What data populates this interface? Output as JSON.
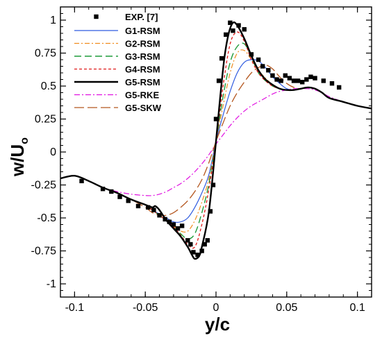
{
  "chart_data": {
    "type": "line",
    "xlabel": "y/c",
    "ylabel_main": "w/U",
    "ylabel_sub": "o",
    "xlim": [
      -0.11,
      0.11
    ],
    "ylim": [
      -1.1,
      1.1
    ],
    "xticks": [
      -0.1,
      -0.05,
      0,
      0.05,
      0.1
    ],
    "xtick_labels": [
      "-0.1",
      "-0.05",
      "0",
      "0.05",
      "0.1"
    ],
    "yticks": [
      -1,
      -0.75,
      -0.5,
      -0.25,
      0,
      0.25,
      0.5,
      0.75,
      1
    ],
    "ytick_labels": [
      "-1",
      "-0.75",
      "-0.5",
      "-0.25",
      "0",
      "0.25",
      "0.5",
      "0.75",
      "1"
    ],
    "grid": false,
    "legend_position": "top-left",
    "experiment": {
      "name": "EXP. [7]",
      "color": "#000000",
      "x": [
        -0.095,
        -0.08,
        -0.074,
        -0.068,
        -0.062,
        -0.055,
        -0.048,
        -0.044,
        -0.04,
        -0.036,
        -0.033,
        -0.03,
        -0.027,
        -0.024,
        -0.02,
        -0.018,
        -0.016,
        -0.013,
        -0.01,
        -0.008,
        -0.006,
        -0.004,
        -0.002,
        0,
        0.002,
        0.004,
        0.007,
        0.01,
        0.012,
        0.016,
        0.02,
        0.025,
        0.03,
        0.033,
        0.037,
        0.04,
        0.043,
        0.046,
        0.049,
        0.052,
        0.055,
        0.058,
        0.061,
        0.064,
        0.067,
        0.07,
        0.076,
        0.082,
        0.087
      ],
      "y": [
        -0.22,
        -0.28,
        -0.3,
        -0.34,
        -0.37,
        -0.41,
        -0.42,
        -0.44,
        -0.48,
        -0.51,
        -0.53,
        -0.55,
        -0.58,
        -0.56,
        -0.67,
        -0.7,
        -0.76,
        -0.78,
        -0.75,
        -0.7,
        -0.67,
        -0.45,
        -0.25,
        0.25,
        0.54,
        0.71,
        0.89,
        0.98,
        0.92,
        0.96,
        0.93,
        0.74,
        0.7,
        0.65,
        0.62,
        0.58,
        0.55,
        0.54,
        0.58,
        0.56,
        0.54,
        0.54,
        0.53,
        0.55,
        0.57,
        0.56,
        0.54,
        0.52,
        0.49
      ]
    },
    "series": [
      {
        "name": "G1-RSM",
        "color": "#2f5be0",
        "width": 1.2,
        "dash": "",
        "x": [
          -0.11,
          -0.1,
          -0.09,
          -0.08,
          -0.07,
          -0.06,
          -0.05,
          -0.045,
          -0.04,
          -0.035,
          -0.03,
          -0.025,
          -0.02,
          -0.015,
          -0.01,
          -0.005,
          0,
          0.005,
          0.01,
          0.015,
          0.02,
          0.025,
          0.03,
          0.035,
          0.04,
          0.045,
          0.05,
          0.055,
          0.06,
          0.065,
          0.07,
          0.075,
          0.08,
          0.09,
          0.1,
          0.11
        ],
        "y": [
          -0.2,
          -0.18,
          -0.22,
          -0.27,
          -0.31,
          -0.36,
          -0.4,
          -0.44,
          -0.47,
          -0.5,
          -0.53,
          -0.53,
          -0.5,
          -0.42,
          -0.31,
          -0.17,
          0.08,
          0.28,
          0.46,
          0.6,
          0.68,
          0.7,
          0.69,
          0.64,
          0.57,
          0.52,
          0.48,
          0.47,
          0.48,
          0.49,
          0.48,
          0.45,
          0.41,
          0.38,
          0.35,
          0.33
        ]
      },
      {
        "name": "G2-RSM",
        "color": "#f08c1e",
        "width": 1.2,
        "dash": "7,3,2,3",
        "x": [
          -0.11,
          -0.1,
          -0.09,
          -0.08,
          -0.07,
          -0.06,
          -0.05,
          -0.045,
          -0.04,
          -0.035,
          -0.03,
          -0.025,
          -0.02,
          -0.015,
          -0.01,
          -0.005,
          0,
          0.005,
          0.01,
          0.015,
          0.02,
          0.025,
          0.03,
          0.035,
          0.04,
          0.045,
          0.05,
          0.055,
          0.06,
          0.065,
          0.07,
          0.075,
          0.08,
          0.09,
          0.1,
          0.11
        ],
        "y": [
          -0.2,
          -0.18,
          -0.22,
          -0.27,
          -0.31,
          -0.36,
          -0.4,
          -0.44,
          -0.48,
          -0.52,
          -0.56,
          -0.6,
          -0.6,
          -0.52,
          -0.38,
          -0.2,
          0.08,
          0.35,
          0.6,
          0.75,
          0.77,
          0.7,
          0.62,
          0.56,
          0.51,
          0.48,
          0.47,
          0.47,
          0.48,
          0.49,
          0.48,
          0.45,
          0.41,
          0.38,
          0.35,
          0.33
        ]
      },
      {
        "name": "G3-RSM",
        "color": "#1f9c3a",
        "width": 1.4,
        "dash": "10,5",
        "x": [
          -0.11,
          -0.1,
          -0.09,
          -0.08,
          -0.07,
          -0.06,
          -0.05,
          -0.045,
          -0.04,
          -0.035,
          -0.03,
          -0.025,
          -0.02,
          -0.015,
          -0.01,
          -0.005,
          0,
          0.005,
          0.01,
          0.015,
          0.02,
          0.025,
          0.03,
          0.035,
          0.04,
          0.045,
          0.05,
          0.055,
          0.06,
          0.065,
          0.07,
          0.075,
          0.08,
          0.09,
          0.1,
          0.11
        ],
        "y": [
          -0.2,
          -0.18,
          -0.22,
          -0.27,
          -0.31,
          -0.36,
          -0.4,
          -0.44,
          -0.48,
          -0.52,
          -0.57,
          -0.62,
          -0.66,
          -0.62,
          -0.46,
          -0.24,
          0.08,
          0.42,
          0.68,
          0.8,
          0.82,
          0.72,
          0.6,
          0.54,
          0.5,
          0.48,
          0.47,
          0.47,
          0.48,
          0.49,
          0.48,
          0.45,
          0.41,
          0.38,
          0.35,
          0.33
        ]
      },
      {
        "name": "G4-RSM",
        "color": "#e01818",
        "width": 1.3,
        "dash": "4,3",
        "x": [
          -0.11,
          -0.1,
          -0.09,
          -0.08,
          -0.07,
          -0.06,
          -0.05,
          -0.045,
          -0.04,
          -0.035,
          -0.03,
          -0.025,
          -0.02,
          -0.015,
          -0.01,
          -0.005,
          0,
          0.005,
          0.01,
          0.015,
          0.02,
          0.025,
          0.03,
          0.035,
          0.04,
          0.045,
          0.05,
          0.055,
          0.06,
          0.065,
          0.07,
          0.075,
          0.08,
          0.09,
          0.1,
          0.11
        ],
        "y": [
          -0.2,
          -0.18,
          -0.22,
          -0.27,
          -0.31,
          -0.36,
          -0.4,
          -0.44,
          -0.48,
          -0.52,
          -0.57,
          -0.63,
          -0.7,
          -0.72,
          -0.55,
          -0.28,
          0.08,
          0.5,
          0.82,
          0.91,
          0.84,
          0.7,
          0.6,
          0.54,
          0.5,
          0.48,
          0.47,
          0.47,
          0.48,
          0.49,
          0.48,
          0.45,
          0.41,
          0.38,
          0.35,
          0.33
        ]
      },
      {
        "name": "G5-RSM",
        "color": "#000000",
        "width": 2.4,
        "dash": "",
        "x": [
          -0.11,
          -0.1,
          -0.09,
          -0.08,
          -0.07,
          -0.06,
          -0.05,
          -0.045,
          -0.043,
          -0.04,
          -0.035,
          -0.03,
          -0.025,
          -0.02,
          -0.017,
          -0.015,
          -0.012,
          -0.01,
          -0.005,
          0,
          0.003,
          0.006,
          0.009,
          0.012,
          0.015,
          0.02,
          0.025,
          0.03,
          0.035,
          0.04,
          0.045,
          0.05,
          0.055,
          0.06,
          0.065,
          0.07,
          0.075,
          0.08,
          0.09,
          0.1,
          0.11
        ],
        "y": [
          -0.2,
          -0.18,
          -0.22,
          -0.27,
          -0.31,
          -0.36,
          -0.4,
          -0.42,
          -0.41,
          -0.44,
          -0.52,
          -0.58,
          -0.64,
          -0.72,
          -0.78,
          -0.81,
          -0.79,
          -0.72,
          -0.45,
          0.08,
          0.42,
          0.72,
          0.9,
          0.98,
          0.96,
          0.86,
          0.73,
          0.62,
          0.55,
          0.51,
          0.48,
          0.47,
          0.47,
          0.48,
          0.49,
          0.48,
          0.45,
          0.41,
          0.38,
          0.35,
          0.33
        ]
      },
      {
        "name": "G5-RKE",
        "color": "#e010e0",
        "width": 1.2,
        "dash": "8,3,2,3",
        "x": [
          -0.11,
          -0.1,
          -0.09,
          -0.08,
          -0.07,
          -0.06,
          -0.05,
          -0.045,
          -0.04,
          -0.035,
          -0.03,
          -0.025,
          -0.02,
          -0.015,
          -0.01,
          -0.005,
          0,
          0.005,
          0.01,
          0.015,
          0.02,
          0.025,
          0.03,
          0.035,
          0.04,
          0.045,
          0.05,
          0.055,
          0.06,
          0.065,
          0.07,
          0.075,
          0.08,
          0.09,
          0.1,
          0.11
        ],
        "y": [
          -0.2,
          -0.18,
          -0.22,
          -0.27,
          -0.3,
          -0.32,
          -0.33,
          -0.33,
          -0.32,
          -0.3,
          -0.27,
          -0.24,
          -0.2,
          -0.15,
          -0.09,
          -0.02,
          0.06,
          0.13,
          0.2,
          0.26,
          0.31,
          0.35,
          0.38,
          0.41,
          0.44,
          0.46,
          0.47,
          0.48,
          0.48,
          0.48,
          0.47,
          0.45,
          0.42,
          0.38,
          0.35,
          0.33
        ]
      },
      {
        "name": "G5-SKW",
        "color": "#b4561e",
        "width": 1.3,
        "dash": "14,5",
        "x": [
          -0.11,
          -0.1,
          -0.09,
          -0.08,
          -0.07,
          -0.06,
          -0.05,
          -0.045,
          -0.04,
          -0.035,
          -0.03,
          -0.025,
          -0.02,
          -0.015,
          -0.01,
          -0.005,
          0,
          0.005,
          0.01,
          0.015,
          0.02,
          0.025,
          0.03,
          0.035,
          0.04,
          0.045,
          0.05,
          0.055,
          0.06,
          0.065,
          0.07,
          0.075,
          0.08,
          0.09,
          0.1,
          0.11
        ],
        "y": [
          -0.2,
          -0.18,
          -0.22,
          -0.27,
          -0.31,
          -0.36,
          -0.42,
          -0.46,
          -0.48,
          -0.48,
          -0.46,
          -0.42,
          -0.37,
          -0.3,
          -0.21,
          -0.08,
          0.08,
          0.22,
          0.35,
          0.45,
          0.53,
          0.6,
          0.64,
          0.66,
          0.63,
          0.57,
          0.52,
          0.49,
          0.48,
          0.49,
          0.48,
          0.45,
          0.41,
          0.38,
          0.35,
          0.33
        ]
      }
    ]
  }
}
